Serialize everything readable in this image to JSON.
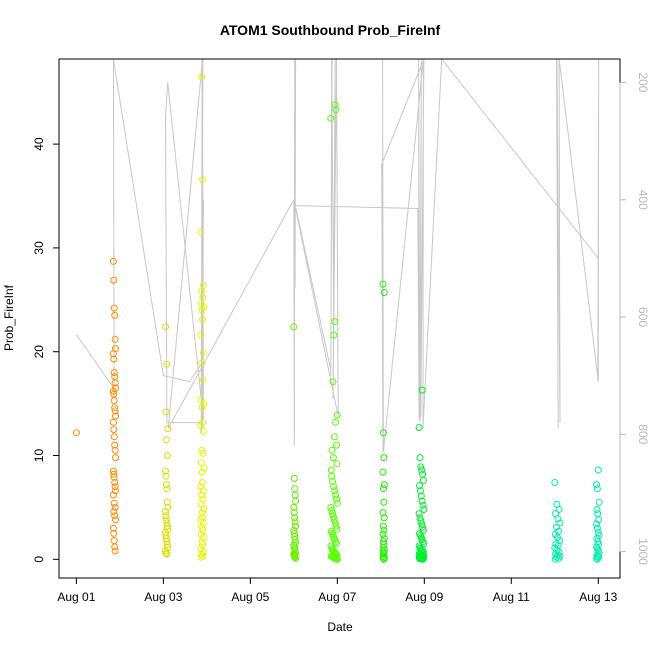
{
  "chart_data": {
    "type": "scatter",
    "title": "ATOM1 Southbound Prob_FireInf",
    "xlabel": "Date",
    "ylabel": "Prob_FireInf",
    "x_tick_labels": [
      "Aug 01",
      "Aug 03",
      "Aug 05",
      "Aug 07",
      "Aug 09",
      "Aug 11",
      "Aug 13"
    ],
    "x_tick_values": [
      1,
      3,
      5,
      7,
      9,
      11,
      13
    ],
    "xlim": [
      0.6,
      13.5
    ],
    "ylim": [
      -1.8,
      48.2
    ],
    "y_ticks": [
      0,
      10,
      20,
      30,
      40
    ],
    "right_axis": {
      "ticks": [
        200,
        400,
        600,
        800,
        1000
      ],
      "range": [
        1045,
        160
      ],
      "reversed": true,
      "color": "#b8b8b8"
    },
    "grid": false,
    "legend": "none",
    "series": [
      {
        "color": "#ff8c00",
        "x": [
          1.0,
          1.85,
          1.86,
          1.87,
          1.88,
          1.89,
          1.9,
          1.85,
          1.86,
          1.87,
          1.88,
          1.89,
          1.9,
          1.85,
          1.86,
          1.87,
          1.88,
          1.89,
          1.9,
          1.85,
          1.86,
          1.87,
          1.88,
          1.89,
          1.9,
          1.85,
          1.86,
          1.87,
          1.88,
          1.89,
          1.9,
          1.85,
          1.87,
          1.89,
          1.86,
          1.88,
          1.9,
          1.85,
          1.86,
          1.87,
          1.88,
          1.89
        ],
        "y": [
          12.2,
          28.7,
          26.9,
          24.2,
          23.5,
          21.2,
          20.3,
          19.8,
          19.3,
          18.0,
          17.6,
          17.0,
          16.5,
          16.2,
          15.9,
          15.3,
          14.6,
          14.3,
          13.8,
          13.2,
          12.5,
          11.8,
          11.0,
          10.5,
          9.8,
          8.5,
          8.2,
          7.9,
          7.4,
          7.0,
          6.6,
          6.2,
          5.4,
          5.0,
          4.6,
          4.2,
          3.8,
          3.0,
          2.5,
          1.8,
          1.2,
          0.8
        ]
      },
      {
        "color": "#dddd00",
        "x": [
          3.05,
          3.08,
          3.06,
          3.1,
          3.07,
          3.09,
          3.05,
          3.06,
          3.07,
          3.08,
          3.09,
          3.1,
          3.05,
          3.06,
          3.07,
          3.08,
          3.09,
          3.1,
          3.05,
          3.06,
          3.07,
          3.08,
          3.09,
          3.1,
          3.05,
          3.06,
          3.08
        ],
        "y": [
          22.4,
          18.8,
          14.2,
          12.6,
          11.5,
          10.0,
          8.5,
          8.0,
          7.2,
          6.8,
          5.5,
          5.0,
          4.6,
          4.2,
          3.8,
          3.5,
          3.2,
          2.9,
          2.6,
          2.3,
          2.0,
          1.7,
          1.4,
          1.1,
          0.8,
          0.6,
          0.5
        ]
      },
      {
        "color": "#e5f500",
        "x": [
          3.88,
          3.9,
          3.86,
          3.92,
          3.88,
          3.91,
          3.87,
          3.93,
          3.89,
          3.9,
          3.86,
          3.92,
          3.88,
          3.91,
          3.87,
          3.93,
          3.89,
          3.9,
          3.86,
          3.92,
          3.88,
          3.91,
          3.87,
          3.93,
          3.89,
          3.9,
          3.86,
          3.92,
          3.88,
          3.91,
          3.87,
          3.93,
          3.89,
          3.9,
          3.86,
          3.92,
          3.88,
          3.91,
          3.87,
          3.93,
          3.89,
          3.9,
          3.86,
          3.92,
          3.88,
          3.91,
          3.87
        ],
        "y": [
          46.5,
          36.6,
          31.5,
          26.4,
          25.8,
          25.2,
          24.6,
          24.3,
          24.0,
          23.1,
          21.6,
          19.9,
          18.9,
          17.3,
          15.4,
          15.0,
          14.6,
          13.2,
          12.9,
          12.3,
          10.5,
          10.2,
          9.3,
          8.8,
          8.4,
          7.4,
          7.0,
          6.6,
          6.2,
          5.8,
          5.3,
          4.9,
          4.5,
          4.1,
          3.8,
          3.5,
          3.1,
          2.8,
          2.4,
          2.1,
          1.7,
          1.4,
          1.0,
          0.7,
          0.5,
          0.3,
          0.2
        ]
      },
      {
        "color": "#66ee00",
        "x": [
          6.0,
          6.01,
          6.02,
          6.03,
          6.04,
          6.0,
          6.01,
          6.02,
          6.03,
          6.04,
          6.0,
          6.01,
          6.02,
          6.03,
          6.04,
          6.0,
          6.01,
          6.02,
          6.03,
          6.04,
          6.0,
          6.01,
          6.02,
          6.03,
          6.04
        ],
        "y": [
          22.4,
          7.8,
          6.8,
          6.2,
          5.6,
          5.0,
          4.5,
          4.0,
          3.6,
          3.2,
          2.8,
          2.5,
          2.2,
          1.9,
          1.6,
          1.4,
          1.2,
          1.0,
          0.8,
          0.6,
          0.5,
          0.4,
          0.3,
          0.2,
          0.1
        ]
      },
      {
        "color": "#55ff00",
        "x": [
          6.85,
          6.95,
          6.97,
          6.94,
          6.92,
          6.9,
          7.0,
          6.96,
          6.93,
          6.98,
          6.88,
          6.91,
          6.99,
          6.86,
          6.87,
          6.89,
          6.92,
          6.94,
          6.96,
          6.98,
          7.0,
          6.85,
          6.87,
          6.89,
          6.91,
          6.93,
          6.95,
          6.97,
          6.99,
          6.86,
          6.88,
          6.9,
          6.92,
          6.94,
          6.96,
          6.98,
          6.85,
          6.87,
          6.89,
          6.91,
          6.93,
          6.95,
          6.97,
          6.99,
          6.86,
          6.88,
          6.9,
          6.92,
          6.94,
          6.96,
          6.98,
          7.0
        ],
        "y": [
          42.5,
          43.8,
          43.3,
          22.9,
          21.6,
          17.1,
          13.9,
          13.2,
          11.8,
          11.0,
          10.5,
          9.8,
          9.2,
          8.6,
          8.0,
          7.5,
          7.0,
          6.6,
          6.2,
          5.8,
          5.4,
          5.0,
          4.7,
          4.4,
          4.1,
          3.8,
          3.5,
          3.2,
          2.9,
          2.7,
          2.5,
          2.3,
          2.1,
          1.9,
          1.7,
          1.5,
          1.3,
          1.1,
          0.9,
          0.8,
          0.7,
          0.6,
          0.5,
          0.4,
          0.3,
          0.25,
          0.2,
          0.15,
          0.1,
          0.05,
          0.02,
          0.0
        ]
      },
      {
        "color": "#22ee00",
        "x": [
          8.05,
          8.08,
          8.06,
          8.07,
          8.05,
          8.08,
          8.06,
          8.07,
          8.05,
          8.08,
          8.06,
          8.07,
          8.05,
          8.08,
          8.06,
          8.07,
          8.05,
          8.08,
          8.06,
          8.07,
          8.05,
          8.08,
          8.06,
          8.07
        ],
        "y": [
          26.5,
          25.7,
          12.2,
          9.8,
          8.4,
          7.2,
          6.8,
          5.5,
          4.5,
          4.0,
          3.2,
          2.8,
          2.4,
          2.0,
          1.7,
          1.4,
          1.1,
          0.9,
          0.7,
          0.5,
          0.3,
          0.2,
          0.1,
          0.0
        ]
      },
      {
        "color": "#00ee30",
        "x": [
          8.88,
          8.95,
          8.9,
          8.92,
          8.94,
          8.96,
          8.98,
          8.89,
          8.91,
          8.93,
          8.95,
          8.97,
          8.99,
          8.88,
          8.9,
          8.92,
          8.94,
          8.96,
          8.98,
          8.89,
          8.91,
          8.93,
          8.95,
          8.97,
          8.99,
          8.88,
          8.9,
          8.92,
          8.94,
          8.96,
          8.98,
          8.89,
          8.91,
          8.93,
          8.95,
          8.97,
          8.99,
          8.88,
          8.9,
          8.92,
          8.94,
          8.96,
          8.98,
          8.89,
          8.91,
          8.93,
          8.95,
          8.97
        ],
        "y": [
          12.7,
          16.3,
          9.8,
          8.9,
          8.6,
          8.2,
          7.6,
          7.1,
          6.6,
          6.1,
          5.6,
          5.2,
          4.8,
          4.4,
          4.0,
          3.7,
          3.4,
          3.1,
          2.8,
          2.5,
          2.3,
          2.1,
          1.9,
          1.7,
          1.5,
          1.3,
          1.1,
          1.0,
          0.9,
          0.8,
          0.7,
          0.6,
          0.5,
          0.45,
          0.4,
          0.35,
          0.3,
          0.25,
          0.2,
          0.18,
          0.15,
          0.12,
          0.1,
          0.08,
          0.06,
          0.04,
          0.02,
          0.0
        ]
      },
      {
        "color": "#00eeaa",
        "x": [
          12.0,
          12.05,
          12.1,
          12.02,
          12.07,
          12.12,
          12.04,
          12.09,
          12.01,
          12.06,
          12.11,
          12.03,
          12.08,
          12.0,
          12.05,
          12.1,
          12.02,
          12.07,
          12.12,
          12.04,
          12.09,
          12.01
        ],
        "y": [
          7.4,
          5.3,
          4.8,
          4.4,
          3.9,
          3.5,
          3.1,
          2.7,
          2.4,
          2.1,
          1.8,
          1.5,
          1.3,
          1.1,
          0.9,
          0.7,
          0.5,
          0.4,
          0.3,
          0.2,
          0.1,
          0.0
        ]
      },
      {
        "color": "#00eeaa",
        "x": [
          13.0,
          12.96,
          12.98,
          13.02,
          12.97,
          12.99,
          13.01,
          12.96,
          12.98,
          13.0,
          13.02,
          12.97,
          12.99,
          13.01,
          12.96,
          12.98,
          13.0,
          13.02,
          12.97,
          12.99,
          13.01,
          12.96,
          12.98
        ],
        "y": [
          8.6,
          7.2,
          6.8,
          5.5,
          4.8,
          4.4,
          3.8,
          3.4,
          3.0,
          2.6,
          2.3,
          2.0,
          1.7,
          1.4,
          1.2,
          1.0,
          0.8,
          0.6,
          0.4,
          0.3,
          0.2,
          0.1,
          0.0
        ]
      }
    ],
    "right_axis_line": {
      "color": "#c8c8c8",
      "x": [
        1.0,
        1.85,
        1.87,
        1.85,
        3.0,
        3.6,
        3.88,
        3.89,
        3.87,
        3.9,
        3.88,
        3.91,
        3.89,
        3.92,
        3.9,
        3.08,
        3.05,
        3.1,
        3.92,
        3.9,
        3.11,
        6.0,
        6.01,
        6.02,
        6.03,
        6.04,
        6.02,
        6.05,
        6.85,
        6.88,
        6.85,
        6.87,
        6.92,
        6.95,
        6.9,
        6.98,
        7.02,
        6.0,
        6.05,
        8.85,
        8.88,
        8.87,
        8.9,
        8.93,
        8.92,
        8.99,
        8.02,
        8.05,
        8.04,
        8.06,
        8.98,
        8.97,
        9.4,
        13.0,
        12.99,
        13.01,
        13.0,
        12.1,
        12.12,
        12.05,
        12.08,
        12.04
      ],
      "y": [
        630,
        720,
        740,
        160,
        700,
        710,
        680,
        160,
        800,
        170,
        760,
        160,
        790,
        400,
        780,
        780,
        260,
        200,
        775,
        160,
        790,
        400,
        820,
        160,
        550,
        160,
        410,
        415,
        690,
        160,
        700,
        160,
        630,
        160,
        740,
        160,
        770,
        400,
        410,
        415,
        775,
        160,
        780,
        160,
        770,
        160,
        340,
        830,
        160,
        830,
        160,
        790,
        160,
        500,
        710,
        160,
        710,
        160,
        780,
        160,
        790,
        160
      ]
    }
  }
}
